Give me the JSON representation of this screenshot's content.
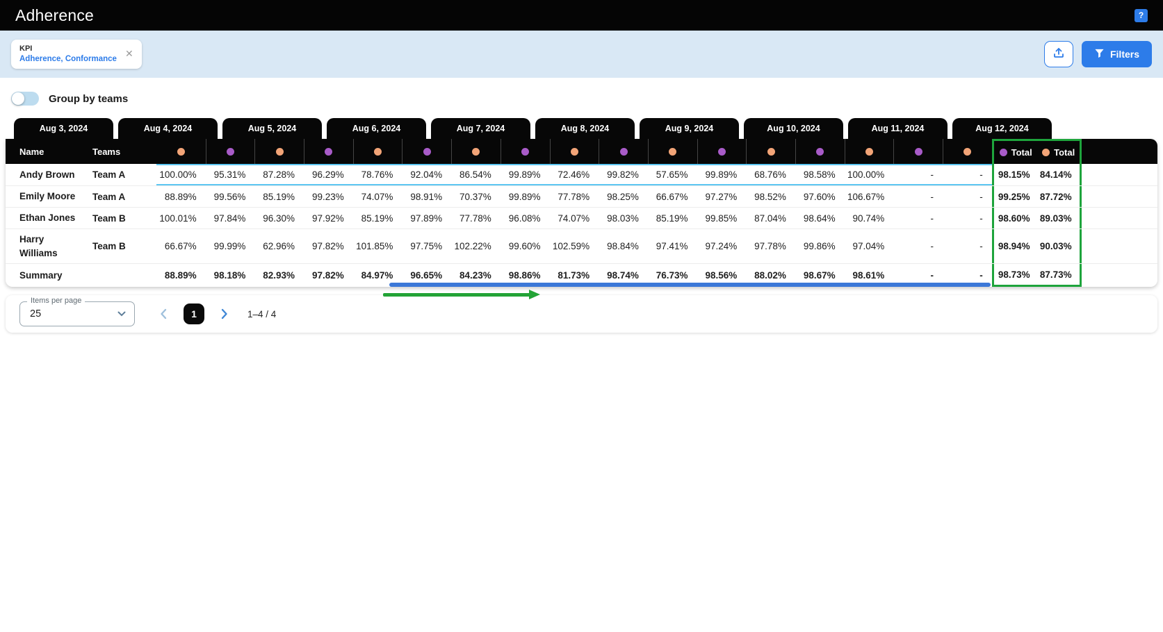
{
  "header": {
    "title": "Adherence",
    "help_label": "?"
  },
  "filter_bar": {
    "kpi_chip": {
      "label": "KPI",
      "value": "Adherence, Conformance",
      "close_icon": "✕"
    },
    "filters_button": {
      "label": "Filters"
    }
  },
  "toolbar": {
    "group_toggle_label": "Group by teams",
    "toggle_state": "off"
  },
  "table": {
    "date_tabs": [
      "Aug 3, 2024",
      "Aug 4, 2024",
      "Aug 5, 2024",
      "Aug 6, 2024",
      "Aug 7, 2024",
      "Aug 8, 2024",
      "Aug 9, 2024",
      "Aug 10, 2024",
      "Aug 11, 2024",
      "Aug 12, 2024"
    ],
    "columns": {
      "name": "Name",
      "teams": "Teams"
    },
    "dot_pattern": [
      "orange",
      "purple",
      "orange",
      "purple",
      "orange",
      "purple",
      "orange",
      "purple",
      "orange",
      "purple",
      "orange",
      "purple",
      "orange",
      "purple",
      "orange",
      "purple",
      "orange"
    ],
    "totals_headers": [
      {
        "dot": "purple",
        "label": "Total"
      },
      {
        "dot": "orange",
        "label": "Total"
      }
    ],
    "rows": [
      {
        "name": "Andy Brown",
        "team": "Team A",
        "highlighted": true,
        "values": [
          "100.00%",
          "95.31%",
          "87.28%",
          "96.29%",
          "78.76%",
          "92.04%",
          "86.54%",
          "99.89%",
          "72.46%",
          "99.82%",
          "57.65%",
          "99.89%",
          "68.76%",
          "98.58%",
          "100.00%",
          "-",
          "-"
        ],
        "totals": [
          "98.15%",
          "84.14%"
        ]
      },
      {
        "name": "Emily Moore",
        "team": "Team A",
        "highlighted": false,
        "values": [
          "88.89%",
          "99.56%",
          "85.19%",
          "99.23%",
          "74.07%",
          "98.91%",
          "70.37%",
          "99.89%",
          "77.78%",
          "98.25%",
          "66.67%",
          "97.27%",
          "98.52%",
          "97.60%",
          "106.67%",
          "-",
          "-"
        ],
        "totals": [
          "99.25%",
          "87.72%"
        ]
      },
      {
        "name": "Ethan Jones",
        "team": "Team B",
        "highlighted": false,
        "values": [
          "100.01%",
          "97.84%",
          "96.30%",
          "97.92%",
          "85.19%",
          "97.89%",
          "77.78%",
          "96.08%",
          "74.07%",
          "98.03%",
          "85.19%",
          "99.85%",
          "87.04%",
          "98.64%",
          "90.74%",
          "-",
          "-"
        ],
        "totals": [
          "98.60%",
          "89.03%"
        ]
      },
      {
        "name": "Harry Williams",
        "team": "Team B",
        "highlighted": false,
        "values": [
          "66.67%",
          "99.99%",
          "62.96%",
          "97.82%",
          "101.85%",
          "97.75%",
          "102.22%",
          "99.60%",
          "102.59%",
          "98.84%",
          "97.41%",
          "97.24%",
          "97.78%",
          "99.86%",
          "97.04%",
          "-",
          "-"
        ],
        "totals": [
          "98.94%",
          "90.03%"
        ]
      }
    ],
    "summary": {
      "label": "Summary",
      "values": [
        "88.89%",
        "98.18%",
        "82.93%",
        "97.82%",
        "84.97%",
        "96.65%",
        "84.23%",
        "98.86%",
        "81.73%",
        "98.74%",
        "76.73%",
        "98.56%",
        "88.02%",
        "98.67%",
        "98.61%",
        "-",
        "-"
      ],
      "totals": [
        "98.73%",
        "87.73%"
      ]
    }
  },
  "pagination": {
    "items_per_page_label": "Items per page",
    "items_per_page_value": "25",
    "current_page": "1",
    "range_label": "1–4 / 4"
  },
  "colors": {
    "kpi_purple": "#a85bc8",
    "kpi_orange": "#f2a477",
    "highlight_cyan": "#5cc6f2",
    "annotation_blue": "#3c78d8",
    "annotation_green": "#23a336",
    "totals_border_green": "#1ea43c",
    "accent_blue": "#2d7ce9",
    "band_background": "#d9e8f5"
  }
}
